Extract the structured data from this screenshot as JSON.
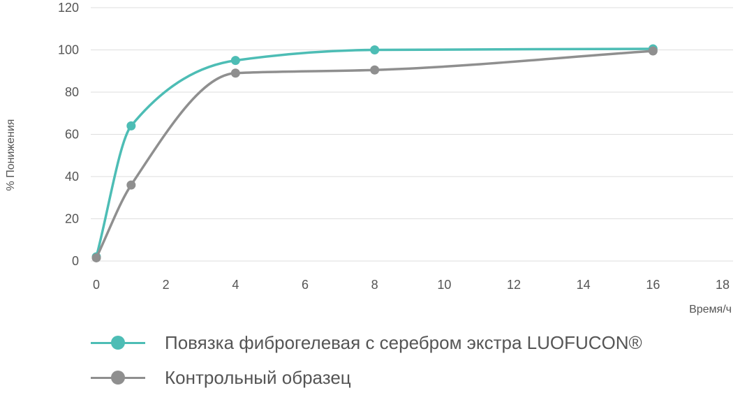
{
  "chart_data": {
    "type": "line",
    "title": "",
    "xlabel": "Время/ч",
    "ylabel": "% Понижения",
    "xlim": [
      0,
      18
    ],
    "ylim": [
      0,
      120
    ],
    "xticks": [
      0,
      2,
      4,
      6,
      8,
      10,
      12,
      14,
      16,
      18
    ],
    "yticks": [
      0,
      20,
      40,
      60,
      80,
      100,
      120
    ],
    "grid": "horizontal",
    "legend_position": "bottom",
    "series": [
      {
        "name": "Повязка фиброгелевая с серебром экстра LUOFUCON®",
        "color": "#4dbdb5",
        "x": [
          0,
          1,
          4,
          8,
          16
        ],
        "y": [
          2,
          64,
          95,
          100,
          100.5
        ]
      },
      {
        "name": "Контрольный образец",
        "color": "#8f8f8f",
        "x": [
          0,
          1,
          4,
          8,
          16
        ],
        "y": [
          1.5,
          36,
          89,
          90.5,
          99.5
        ]
      }
    ]
  }
}
